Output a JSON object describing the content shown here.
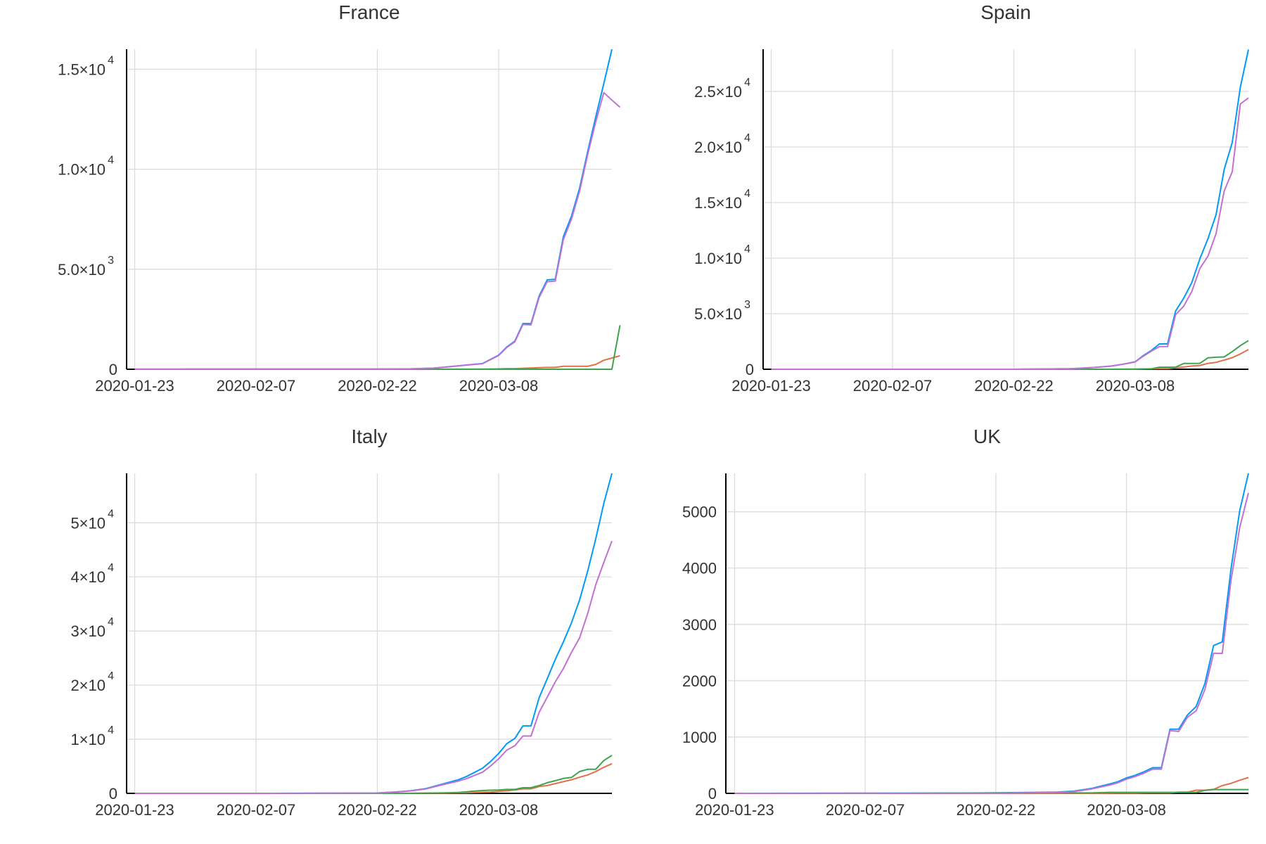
{
  "chart_data": [
    {
      "type": "line",
      "title": "France",
      "x": [
        "2020-01-23",
        "2020-01-30",
        "2020-02-07",
        "2020-02-14",
        "2020-02-22",
        "2020-02-26",
        "2020-02-29",
        "2020-03-02",
        "2020-03-04",
        "2020-03-06",
        "2020-03-08",
        "2020-03-09",
        "2020-03-10",
        "2020-03-11",
        "2020-03-12",
        "2020-03-13",
        "2020-03-14",
        "2020-03-15",
        "2020-03-16",
        "2020-03-17",
        "2020-03-18",
        "2020-03-19",
        "2020-03-20",
        "2020-03-21",
        "2020-03-22",
        "2020-03-23"
      ],
      "xticks": [
        "2020-01-23",
        "2020-02-07",
        "2020-02-22",
        "2020-03-08"
      ],
      "ylim": [
        0,
        16000
      ],
      "yticks": [
        {
          "value": 0,
          "mantissa": "0",
          "exp": ""
        },
        {
          "value": 5000,
          "mantissa": "5.0×10",
          "exp": "3"
        },
        {
          "value": 10000,
          "mantissa": "1.0×10",
          "exp": "4"
        },
        {
          "value": 15000,
          "mantissa": "1.5×10",
          "exp": "4"
        }
      ],
      "grid": true,
      "series": [
        {
          "color": "#009af9",
          "values": [
            2,
            6,
            11,
            11,
            12,
            18,
            57,
            130,
            212,
            285,
            706,
            1116,
            1402,
            2284,
            2281,
            3661,
            4469,
            4499,
            6633,
            7652,
            9043,
            10871,
            12612,
            14282,
            16018,
            null
          ]
        },
        {
          "color": "#e26f46",
          "values": [
            0,
            0,
            0,
            1,
            1,
            2,
            2,
            3,
            4,
            7,
            19,
            30,
            33,
            48,
            61,
            79,
            91,
            91,
            148,
            148,
            148,
            148,
            243,
            450,
            562,
            674
          ]
        },
        {
          "color": "#3da44d",
          "values": [
            0,
            0,
            0,
            0,
            0,
            0,
            0,
            0,
            0,
            0,
            0,
            0,
            0,
            0,
            0,
            0,
            0,
            0,
            0,
            0,
            0,
            0,
            0,
            0,
            0,
            2200
          ]
        },
        {
          "color": "#c271d2",
          "values": [
            2,
            6,
            11,
            11,
            11,
            16,
            55,
            127,
            208,
            278,
            687,
            1086,
            1369,
            2236,
            2220,
            3582,
            4378,
            4408,
            6485,
            7504,
            8895,
            10723,
            12369,
            13832,
            13456,
            13100
          ]
        }
      ]
    },
    {
      "type": "line",
      "title": "Spain",
      "x": [
        "2020-01-23",
        "2020-02-07",
        "2020-02-22",
        "2020-02-29",
        "2020-03-03",
        "2020-03-05",
        "2020-03-06",
        "2020-03-07",
        "2020-03-08",
        "2020-03-09",
        "2020-03-10",
        "2020-03-11",
        "2020-03-12",
        "2020-03-13",
        "2020-03-14",
        "2020-03-15",
        "2020-03-16",
        "2020-03-17",
        "2020-03-18",
        "2020-03-19",
        "2020-03-20",
        "2020-03-21",
        "2020-03-22"
      ],
      "xticks": [
        "2020-01-23",
        "2020-02-07",
        "2020-02-22",
        "2020-03-08"
      ],
      "ylim": [
        0,
        28800
      ],
      "yticks": [
        {
          "value": 0,
          "mantissa": "0",
          "exp": ""
        },
        {
          "value": 5000,
          "mantissa": "5.0×10",
          "exp": "3"
        },
        {
          "value": 10000,
          "mantissa": "1.0×10",
          "exp": "4"
        },
        {
          "value": 15000,
          "mantissa": "1.5×10",
          "exp": "4"
        },
        {
          "value": 20000,
          "mantissa": "2.0×10",
          "exp": "4"
        },
        {
          "value": 25000,
          "mantissa": "2.5×10",
          "exp": "4"
        }
      ],
      "grid": true,
      "series": [
        {
          "color": "#009af9",
          "values": [
            0,
            2,
            2,
            45,
            165,
            282,
            400,
            525,
            674,
            1231,
            1695,
            2277,
            2277,
            5232,
            6391,
            7798,
            9942,
            11748,
            13910,
            17963,
            20410,
            25374,
            28768
          ]
        },
        {
          "color": "#e26f46",
          "values": [
            0,
            0,
            0,
            0,
            1,
            3,
            5,
            10,
            17,
            28,
            35,
            54,
            55,
            133,
            195,
            289,
            342,
            533,
            623,
            830,
            1043,
            1375,
            1772
          ]
        },
        {
          "color": "#3da44d",
          "values": [
            0,
            0,
            0,
            0,
            0,
            0,
            0,
            0,
            0,
            32,
            32,
            183,
            183,
            193,
            517,
            517,
            530,
            1028,
            1081,
            1107,
            1588,
            2125,
            2575
          ]
        },
        {
          "color": "#c271d2",
          "values": [
            0,
            2,
            2,
            45,
            164,
            279,
            395,
            515,
            657,
            1171,
            1628,
            2040,
            2039,
            4906,
            5679,
            6992,
            9070,
            10187,
            12206,
            16026,
            17779,
            23874,
            24421
          ]
        }
      ]
    },
    {
      "type": "line",
      "title": "Italy",
      "x": [
        "2020-01-23",
        "2020-02-07",
        "2020-02-22",
        "2020-02-24",
        "2020-02-26",
        "2020-02-28",
        "2020-03-01",
        "2020-03-03",
        "2020-03-04",
        "2020-03-05",
        "2020-03-06",
        "2020-03-07",
        "2020-03-08",
        "2020-03-09",
        "2020-03-10",
        "2020-03-11",
        "2020-03-12",
        "2020-03-13",
        "2020-03-14",
        "2020-03-15",
        "2020-03-16",
        "2020-03-17",
        "2020-03-18",
        "2020-03-19",
        "2020-03-20",
        "2020-03-21",
        "2020-03-22"
      ],
      "xticks": [
        "2020-01-23",
        "2020-02-07",
        "2020-02-22",
        "2020-03-08"
      ],
      "ylim": [
        0,
        59138
      ],
      "yticks": [
        {
          "value": 0,
          "mantissa": "0",
          "exp": ""
        },
        {
          "value": 10000,
          "mantissa": "1×10",
          "exp": "4"
        },
        {
          "value": 20000,
          "mantissa": "2×10",
          "exp": "4"
        },
        {
          "value": 30000,
          "mantissa": "3×10",
          "exp": "4"
        },
        {
          "value": 40000,
          "mantissa": "4×10",
          "exp": "4"
        },
        {
          "value": 50000,
          "mantissa": "5×10",
          "exp": "4"
        }
      ],
      "grid": true,
      "series": [
        {
          "color": "#009af9",
          "values": [
            2,
            3,
            62,
            229,
            453,
            888,
            1694,
            2502,
            3089,
            3858,
            4636,
            5883,
            7375,
            9172,
            10149,
            12462,
            12462,
            17660,
            21157,
            24747,
            27980,
            31506,
            35713,
            41035,
            47021,
            53578,
            59138
          ]
        },
        {
          "color": "#e26f46",
          "values": [
            0,
            0,
            2,
            7,
            12,
            21,
            34,
            79,
            107,
            148,
            197,
            233,
            366,
            463,
            631,
            827,
            827,
            1266,
            1441,
            1809,
            2158,
            2503,
            2978,
            3405,
            4032,
            4825,
            5476
          ]
        },
        {
          "color": "#3da44d",
          "values": [
            0,
            0,
            1,
            1,
            3,
            46,
            83,
            160,
            276,
            414,
            523,
            589,
            622,
            724,
            724,
            1045,
            1045,
            1439,
            1966,
            2335,
            2749,
            2941,
            4025,
            4440,
            4440,
            6072,
            7024
          ]
        },
        {
          "color": "#c271d2",
          "values": [
            2,
            3,
            59,
            221,
            438,
            821,
            1577,
            2263,
            2706,
            3296,
            3916,
            5061,
            6387,
            7985,
            8794,
            10590,
            10590,
            14955,
            17750,
            20603,
            23073,
            26062,
            28710,
            33190,
            38549,
            42681,
            46638
          ]
        }
      ]
    },
    {
      "type": "line",
      "title": "UK",
      "x": [
        "2020-01-23",
        "2020-02-07",
        "2020-02-22",
        "2020-02-29",
        "2020-03-02",
        "2020-03-04",
        "2020-03-06",
        "2020-03-07",
        "2020-03-08",
        "2020-03-09",
        "2020-03-10",
        "2020-03-11",
        "2020-03-12",
        "2020-03-13",
        "2020-03-14",
        "2020-03-15",
        "2020-03-16",
        "2020-03-17",
        "2020-03-18",
        "2020-03-19",
        "2020-03-20",
        "2020-03-21",
        "2020-03-22"
      ],
      "xticks": [
        "2020-01-23",
        "2020-02-07",
        "2020-02-22",
        "2020-03-08"
      ],
      "ylim": [
        0,
        5683
      ],
      "yticks": [
        {
          "value": 0,
          "mantissa": "0",
          "exp": ""
        },
        {
          "value": 1000,
          "mantissa": "1000",
          "exp": ""
        },
        {
          "value": 2000,
          "mantissa": "2000",
          "exp": ""
        },
        {
          "value": 3000,
          "mantissa": "3000",
          "exp": ""
        },
        {
          "value": 4000,
          "mantissa": "4000",
          "exp": ""
        },
        {
          "value": 5000,
          "mantissa": "5000",
          "exp": ""
        }
      ],
      "grid": true,
      "series": [
        {
          "color": "#009af9",
          "values": [
            0,
            3,
            9,
            23,
            40,
            87,
            164,
            207,
            273,
            321,
            382,
            456,
            456,
            1140,
            1140,
            1391,
            1543,
            1950,
            2626,
            2689,
            3983,
            5018,
            5683
          ]
        },
        {
          "color": "#e26f46",
          "values": [
            0,
            0,
            0,
            0,
            0,
            0,
            1,
            2,
            3,
            4,
            6,
            8,
            8,
            8,
            21,
            21,
            56,
            56,
            71,
            137,
            177,
            233,
            281
          ]
        },
        {
          "color": "#3da44d",
          "values": [
            0,
            0,
            8,
            8,
            8,
            8,
            18,
            18,
            18,
            18,
            18,
            18,
            18,
            18,
            18,
            18,
            18,
            52,
            67,
            67,
            67,
            67,
            67
          ]
        },
        {
          "color": "#c271d2",
          "values": [
            0,
            3,
            1,
            15,
            32,
            79,
            145,
            187,
            252,
            299,
            358,
            430,
            430,
            1114,
            1101,
            1352,
            1466,
            1842,
            2488,
            2485,
            3779,
            4718,
            5335
          ]
        }
      ]
    }
  ]
}
